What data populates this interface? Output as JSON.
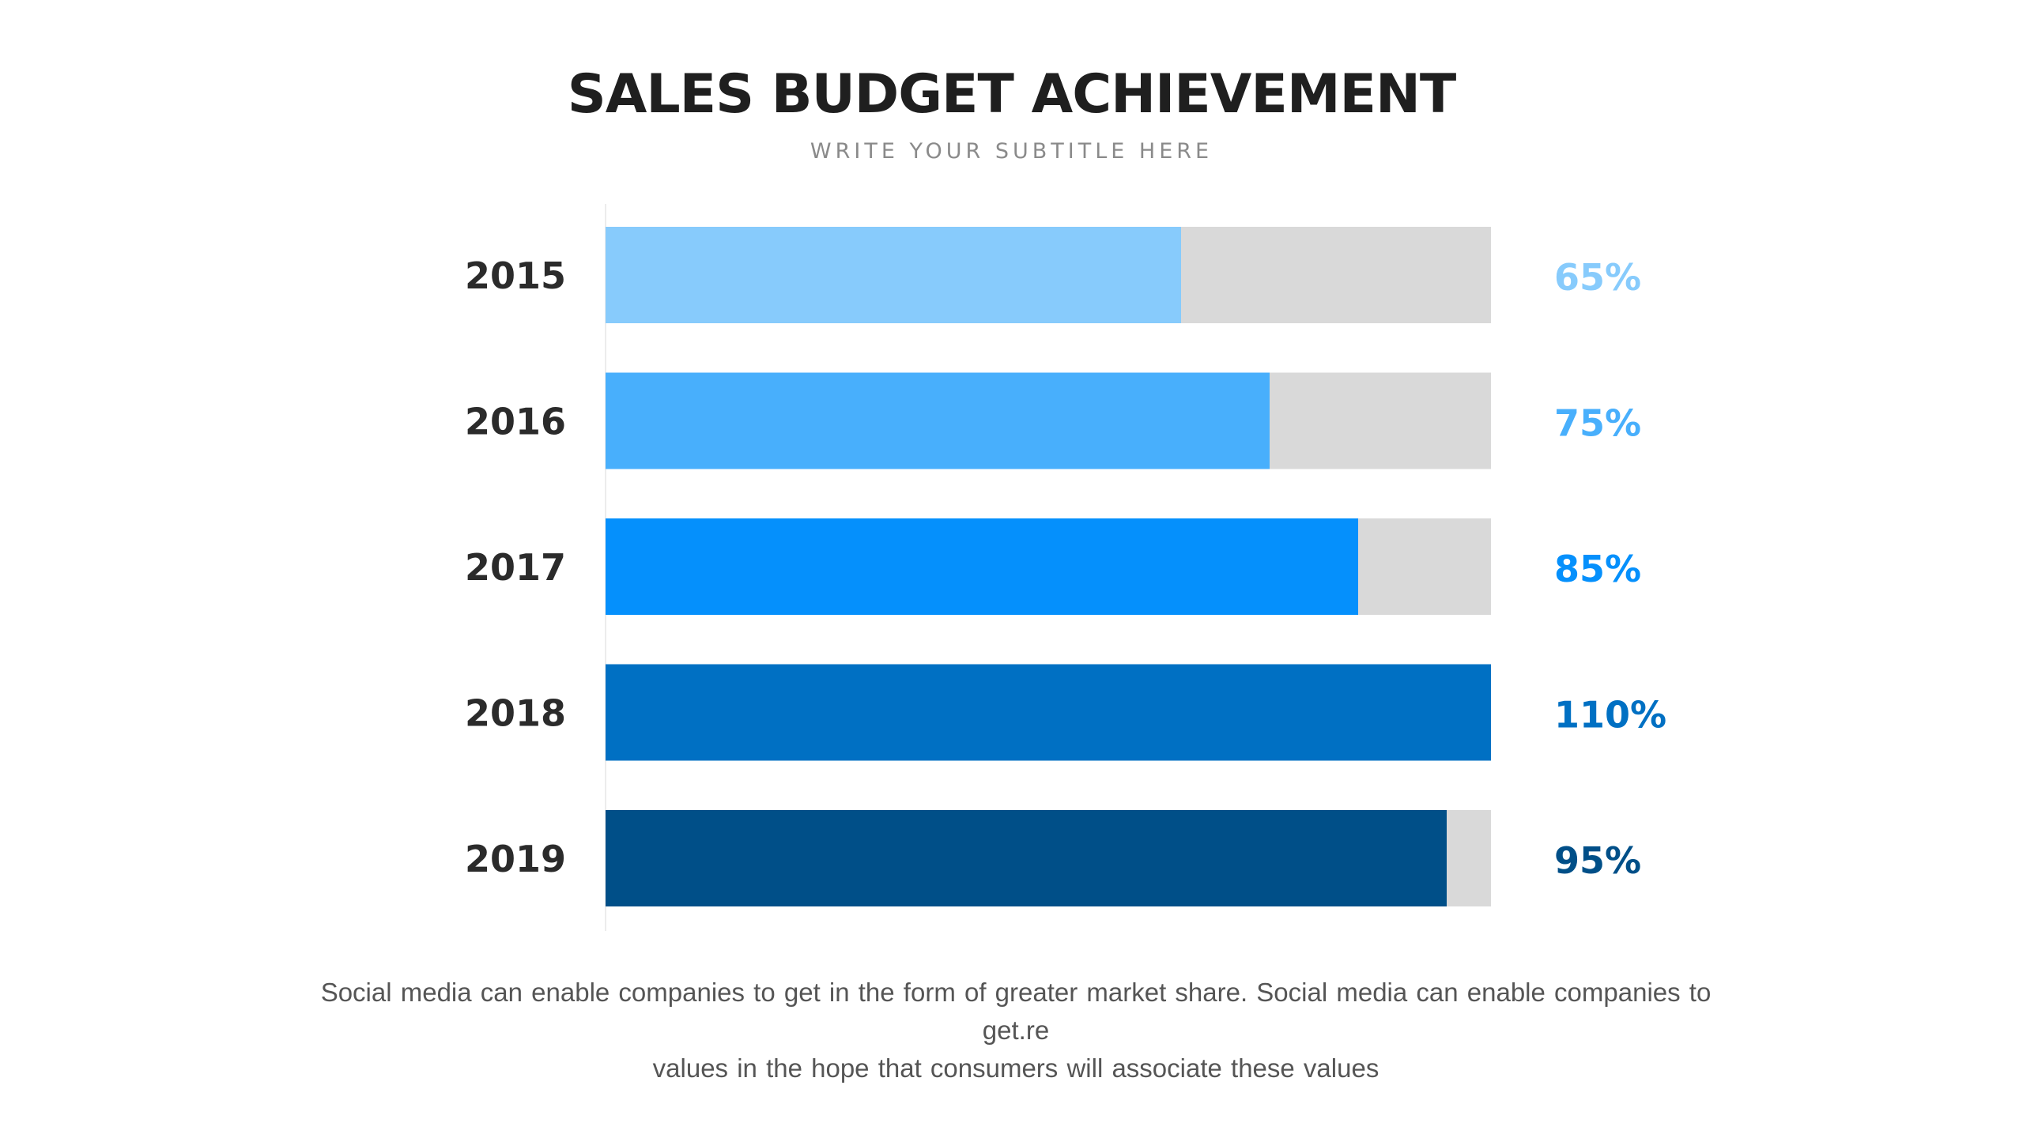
{
  "slide": {
    "title": "SALES BUDGET ACHIEVEMENT",
    "subtitle": "WRITE YOUR SUBTITLE HERE",
    "caption_line1": "Social media can enable companies to get in the form of greater market share. Social media can enable companies to get.re",
    "caption_line2": "values in the hope that consumers will associate these values"
  },
  "chart_data": {
    "type": "bar",
    "orientation": "horizontal",
    "categories": [
      "2015",
      "2016",
      "2017",
      "2018",
      "2019"
    ],
    "values": [
      65,
      75,
      85,
      110,
      95
    ],
    "value_labels": [
      "65%",
      "75%",
      "85%",
      "110%",
      "95%"
    ],
    "value_unit": "%",
    "xlim": [
      0,
      100
    ],
    "track_color": "#d9d9d9",
    "bar_colors": [
      "#87cbfc",
      "#48affc",
      "#0590fc",
      "#0070c3",
      "#004f88"
    ],
    "grid": false,
    "legend": "none"
  }
}
